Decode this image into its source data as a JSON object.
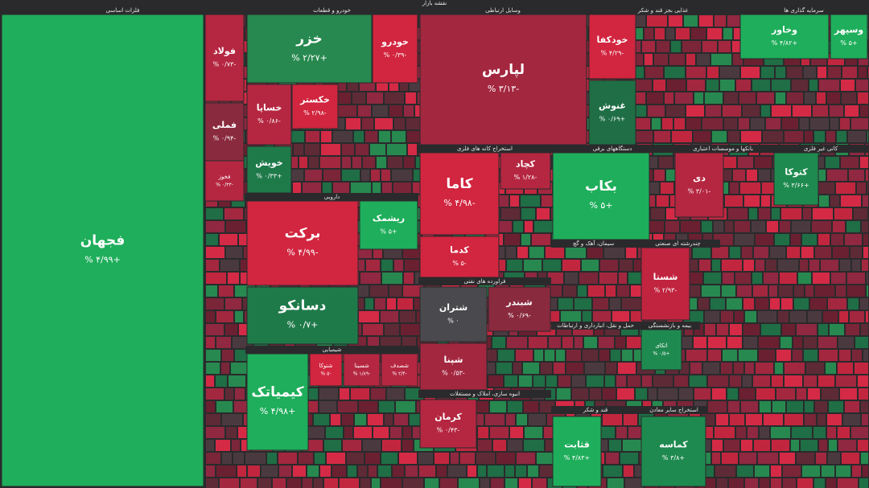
{
  "header": {
    "title": "نقشه بازار"
  },
  "sectors": [
    {
      "name": "فلزات اساسی",
      "tiles": [
        {
          "name": "فجهان",
          "change": "+۴/۹۹ %"
        },
        {
          "name": "فولاد",
          "change": "-۰/۷۳ %"
        },
        {
          "name": "فملی",
          "change": "-۰/۹۴ %"
        },
        {
          "name": "فخوز",
          "change": "-۰/۳۳ %"
        }
      ]
    },
    {
      "name": "خودرو و قطعات",
      "tiles": [
        {
          "name": "خزر",
          "change": "+۲/۲۷ %"
        },
        {
          "name": "خودرو",
          "change": "-۰/۳۹ %"
        },
        {
          "name": "خساپا",
          "change": "-۰/۸۶ %"
        },
        {
          "name": "خکستر",
          "change": "-۲/۹۸ %"
        },
        {
          "name": "خویش",
          "change": "+۰/۳۳ %"
        }
      ]
    },
    {
      "name": "دارویی",
      "tiles": [
        {
          "name": "برکت",
          "change": "-۴/۹۹ %"
        },
        {
          "name": "ریشمک",
          "change": "+۵ %"
        },
        {
          "name": "دسانکو",
          "change": "+۰/۷ %"
        }
      ]
    },
    {
      "name": "شیمیایی",
      "tiles": [
        {
          "name": "کیمیاتک",
          "change": "+۴/۹۸ %"
        },
        {
          "name": "شتوکا",
          "change": "-۵ %"
        },
        {
          "name": "شسینا",
          "change": "-۱/۸۹ %"
        },
        {
          "name": "شصدف",
          "change": "-۲/۴ %"
        }
      ]
    },
    {
      "name": "وسایل ارتباطی",
      "tiles": [
        {
          "name": "لپارس",
          "change": "-۳/۱۳ %"
        }
      ]
    },
    {
      "name": "استخراج کانه های فلزی",
      "tiles": [
        {
          "name": "کاما",
          "change": "-۴/۹۸ %"
        },
        {
          "name": "کدما",
          "change": "-۵ %"
        },
        {
          "name": "کچاد",
          "change": "-۱/۲۸ %"
        }
      ]
    },
    {
      "name": "فراورده های نفتی",
      "tiles": [
        {
          "name": "شتران",
          "change": "۰ %"
        },
        {
          "name": "شپنا",
          "change": "-۰/۵۳ %"
        },
        {
          "name": "شبندر",
          "change": "-۰/۶۹ %"
        }
      ]
    },
    {
      "name": "انبوه سازی، املاک و مستغلات",
      "tiles": [
        {
          "name": "کرمان",
          "change": "-۰/۴۳ %"
        }
      ]
    },
    {
      "name": "غذایی بجز قند و شکر",
      "tiles": [
        {
          "name": "خودکفا",
          "change": "-۴/۲۹ %"
        },
        {
          "name": "غنوش",
          "change": "+۰/۶۹ %"
        }
      ]
    },
    {
      "name": "سرمایه گذاری ها",
      "tiles": [
        {
          "name": "وخاور",
          "change": "+۴/۸۲ %"
        },
        {
          "name": "وسپهر",
          "change": "+۵ %"
        }
      ]
    },
    {
      "name": "دستگاههای برقی",
      "tiles": [
        {
          "name": "بکاب",
          "change": "+۵ %"
        }
      ]
    },
    {
      "name": "بانکها و موسسات اعتباری",
      "tiles": [
        {
          "name": "دی",
          "change": "-۳/۰۱ %"
        }
      ]
    },
    {
      "name": "کانی غیر فلزی",
      "tiles": [
        {
          "name": "کتوکا",
          "change": "+۳/۶۶ %"
        }
      ]
    },
    {
      "name": "سیمان، آهک و گچ",
      "tiles": []
    },
    {
      "name": "چندرشته ای صنعتی",
      "tiles": [
        {
          "name": "شستا",
          "change": "-۲/۹۳ %"
        }
      ]
    },
    {
      "name": "حمل و نقل، انبارداری و ارتباطات",
      "tiles": []
    },
    {
      "name": "بیمه و بازنشستگی",
      "tiles": [
        {
          "name": "اتکای",
          "change": "+۰/۵ %"
        }
      ]
    },
    {
      "name": "قند و شکر",
      "tiles": [
        {
          "name": "قثابت",
          "change": "+۴/۸۳ %"
        }
      ]
    },
    {
      "name": "استخراج سایر معادن",
      "tiles": [
        {
          "name": "کماسه",
          "change": "+۳/۸ %"
        }
      ]
    }
  ]
}
